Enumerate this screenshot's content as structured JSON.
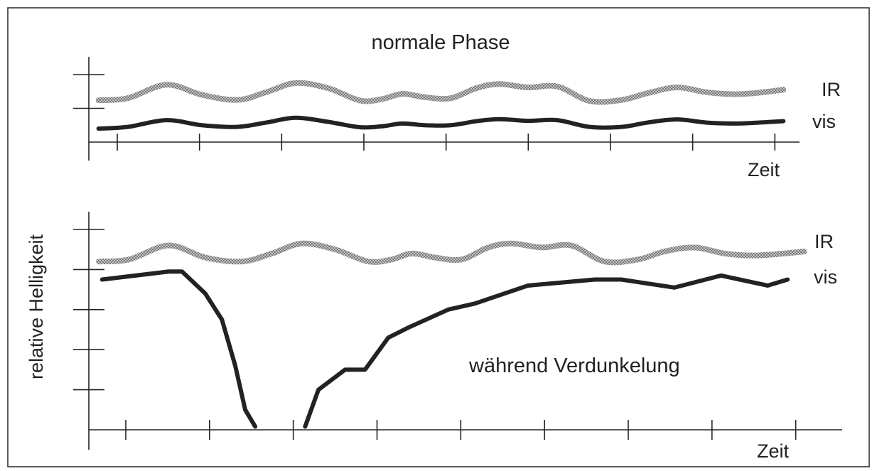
{
  "chart_data": [
    {
      "type": "line",
      "title": "normale Phase",
      "xlabel": "Zeit",
      "ylabel": "",
      "xlim": [
        0,
        11
      ],
      "ylim": [
        0,
        2
      ],
      "series": [
        {
          "name": "IR",
          "color": "#9a9a9a",
          "x": [
            0.15,
            0.6,
            1.2,
            1.75,
            2.3,
            2.75,
            3.2,
            3.7,
            4.2,
            4.55,
            4.85,
            5.2,
            5.6,
            6.0,
            6.35,
            6.8,
            7.25,
            7.75,
            8.25,
            8.65,
            9.1,
            9.55,
            9.95,
            10.3,
            10.75
          ],
          "y": [
            1.24,
            1.3,
            1.7,
            1.4,
            1.25,
            1.48,
            1.75,
            1.6,
            1.23,
            1.28,
            1.43,
            1.33,
            1.3,
            1.6,
            1.72,
            1.62,
            1.65,
            1.22,
            1.25,
            1.45,
            1.62,
            1.48,
            1.42,
            1.45,
            1.55
          ]
        },
        {
          "name": "vis",
          "color": "#222222",
          "x": [
            0.15,
            0.6,
            1.2,
            1.75,
            2.3,
            2.75,
            3.2,
            3.7,
            4.2,
            4.55,
            4.85,
            5.2,
            5.6,
            6.0,
            6.35,
            6.8,
            7.25,
            7.75,
            8.25,
            8.65,
            9.1,
            9.55,
            9.95,
            10.3,
            10.75
          ],
          "y": [
            0.4,
            0.45,
            0.65,
            0.5,
            0.45,
            0.58,
            0.72,
            0.6,
            0.44,
            0.47,
            0.55,
            0.5,
            0.5,
            0.62,
            0.68,
            0.63,
            0.65,
            0.45,
            0.45,
            0.58,
            0.67,
            0.58,
            0.55,
            0.57,
            0.62
          ]
        }
      ]
    },
    {
      "type": "line",
      "title": "",
      "annotation": "während Verdunkelung",
      "xlabel": "Zeit",
      "ylabel": "relative Helligkeit",
      "xlim": [
        0,
        11
      ],
      "ylim": [
        0,
        5
      ],
      "series": [
        {
          "name": "IR",
          "color": "#9a9a9a",
          "x": [
            0.15,
            0.6,
            1.2,
            1.75,
            2.3,
            2.75,
            3.2,
            3.7,
            4.2,
            4.55,
            4.85,
            5.2,
            5.6,
            6.0,
            6.35,
            6.8,
            7.25,
            7.75,
            8.25,
            8.65,
            9.1,
            9.55,
            9.95,
            10.3,
            10.75
          ],
          "y": [
            4.2,
            4.25,
            4.6,
            4.3,
            4.2,
            4.4,
            4.65,
            4.5,
            4.2,
            4.25,
            4.4,
            4.3,
            4.25,
            4.55,
            4.65,
            4.55,
            4.6,
            4.2,
            4.25,
            4.45,
            4.55,
            4.4,
            4.35,
            4.38,
            4.45
          ]
        },
        {
          "name": "vis",
          "color": "#222222",
          "segments": [
            {
              "x": [
                0.2,
                1.2,
                1.4,
                1.75,
                2.0,
                2.2,
                2.35,
                2.5
              ],
              "y": [
                3.75,
                3.95,
                3.95,
                3.4,
                2.75,
                1.6,
                0.5,
                0.08
              ]
            },
            {
              "x": [
                3.25,
                3.45,
                3.85,
                4.15,
                4.5,
                4.8,
                5.4,
                5.8,
                6.6,
                7.6,
                8.0,
                8.8,
                9.5,
                10.2,
                10.5
              ],
              "y": [
                0.08,
                1.0,
                1.5,
                1.5,
                2.3,
                2.55,
                3.0,
                3.15,
                3.6,
                3.75,
                3.75,
                3.55,
                3.85,
                3.6,
                3.75
              ]
            }
          ]
        }
      ]
    }
  ]
}
